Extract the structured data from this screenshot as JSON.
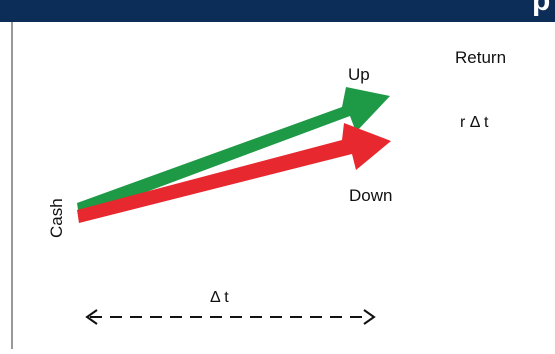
{
  "header": {
    "title_fragment": "p",
    "background": "#0c2d57"
  },
  "labels": {
    "up": "Up",
    "down": "Down",
    "return_heading": "Return",
    "return_value": "r Δ t",
    "cash": "Cash",
    "time_interval": "Δ t"
  },
  "colors": {
    "up_arrow": "#1e9a46",
    "down_arrow": "#e8282f",
    "frame_line": "#333333",
    "dashed_line": "#111111"
  },
  "icons": {
    "up_arrow": "arrow-up-right",
    "down_arrow": "arrow-right",
    "time_arrow": "double-headed-dashed-arrow"
  }
}
